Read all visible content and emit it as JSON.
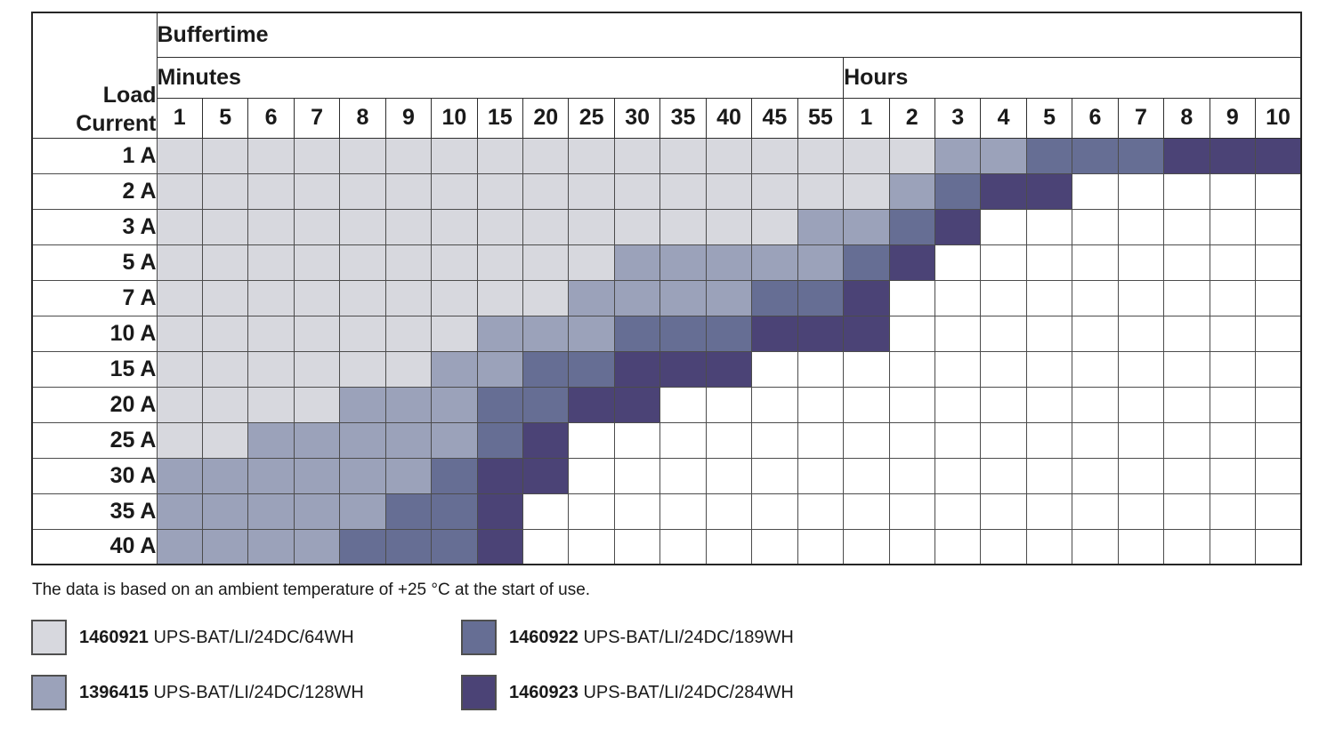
{
  "table": {
    "corner_label": [
      "Load",
      "Current"
    ],
    "buffertime_label": "Buffertime",
    "minutes_label": "Minutes",
    "hours_label": "Hours",
    "minute_ticks": [
      "1",
      "5",
      "6",
      "7",
      "8",
      "9",
      "10",
      "15",
      "20",
      "25",
      "30",
      "35",
      "40",
      "45",
      "55"
    ],
    "hour_ticks": [
      "1",
      "2",
      "3",
      "4",
      "5",
      "6",
      "7",
      "8",
      "9",
      "10"
    ]
  },
  "colors": {
    "0": "#ffffff",
    "1": "#d7d8de",
    "2": "#9ba2ba",
    "3": "#666e94",
    "4": "#4b4376"
  },
  "footer_note": "The data is based on an ambient temperature of +25 °C at the start of use.",
  "legend": [
    {
      "code": "1460921",
      "name": "UPS-BAT/LI/24DC/64WH",
      "color_key": "1"
    },
    {
      "code": "1396415",
      "name": "UPS-BAT/LI/24DC/128WH",
      "color_key": "2"
    },
    {
      "code": "1460922",
      "name": "UPS-BAT/LI/24DC/189WH",
      "color_key": "3"
    },
    {
      "code": "1460923",
      "name": "UPS-BAT/LI/24DC/284WH",
      "color_key": "4"
    }
  ],
  "chart_data": {
    "type": "heatmap",
    "title": "Buffertime",
    "ylabel": "Load Current",
    "x_axis": {
      "minutes": [
        1,
        5,
        6,
        7,
        8,
        9,
        10,
        15,
        20,
        25,
        30,
        35,
        40,
        45,
        55
      ],
      "hours": [
        1,
        2,
        3,
        4,
        5,
        6,
        7,
        8,
        9,
        10
      ]
    },
    "code_meaning": {
      "0": "no battery covers this buffertime",
      "1": "1460921 UPS-BAT/LI/24DC/64WH",
      "2": "1396415 UPS-BAT/LI/24DC/128WH",
      "3": "1460922 UPS-BAT/LI/24DC/189WH",
      "4": "1460923 UPS-BAT/LI/24DC/284WH"
    },
    "rows": [
      {
        "load_current": "1 A",
        "cells": [
          1,
          1,
          1,
          1,
          1,
          1,
          1,
          1,
          1,
          1,
          1,
          1,
          1,
          1,
          1,
          1,
          1,
          2,
          2,
          3,
          3,
          3,
          4,
          4,
          4
        ]
      },
      {
        "load_current": "2 A",
        "cells": [
          1,
          1,
          1,
          1,
          1,
          1,
          1,
          1,
          1,
          1,
          1,
          1,
          1,
          1,
          1,
          1,
          2,
          3,
          4,
          4,
          0,
          0,
          0,
          0,
          0
        ]
      },
      {
        "load_current": "3 A",
        "cells": [
          1,
          1,
          1,
          1,
          1,
          1,
          1,
          1,
          1,
          1,
          1,
          1,
          1,
          1,
          2,
          2,
          3,
          4,
          0,
          0,
          0,
          0,
          0,
          0,
          0
        ]
      },
      {
        "load_current": "5 A",
        "cells": [
          1,
          1,
          1,
          1,
          1,
          1,
          1,
          1,
          1,
          1,
          2,
          2,
          2,
          2,
          2,
          3,
          4,
          0,
          0,
          0,
          0,
          0,
          0,
          0,
          0
        ]
      },
      {
        "load_current": "7 A",
        "cells": [
          1,
          1,
          1,
          1,
          1,
          1,
          1,
          1,
          1,
          2,
          2,
          2,
          2,
          3,
          3,
          4,
          0,
          0,
          0,
          0,
          0,
          0,
          0,
          0,
          0
        ]
      },
      {
        "load_current": "10 A",
        "cells": [
          1,
          1,
          1,
          1,
          1,
          1,
          1,
          2,
          2,
          2,
          3,
          3,
          3,
          4,
          4,
          4,
          0,
          0,
          0,
          0,
          0,
          0,
          0,
          0,
          0
        ]
      },
      {
        "load_current": "15 A",
        "cells": [
          1,
          1,
          1,
          1,
          1,
          1,
          2,
          2,
          3,
          3,
          4,
          4,
          4,
          0,
          0,
          0,
          0,
          0,
          0,
          0,
          0,
          0,
          0,
          0,
          0
        ]
      },
      {
        "load_current": "20 A",
        "cells": [
          1,
          1,
          1,
          1,
          2,
          2,
          2,
          3,
          3,
          4,
          4,
          0,
          0,
          0,
          0,
          0,
          0,
          0,
          0,
          0,
          0,
          0,
          0,
          0,
          0
        ]
      },
      {
        "load_current": "25 A",
        "cells": [
          1,
          1,
          2,
          2,
          2,
          2,
          2,
          3,
          4,
          0,
          0,
          0,
          0,
          0,
          0,
          0,
          0,
          0,
          0,
          0,
          0,
          0,
          0,
          0,
          0
        ]
      },
      {
        "load_current": "30 A",
        "cells": [
          2,
          2,
          2,
          2,
          2,
          2,
          3,
          4,
          4,
          0,
          0,
          0,
          0,
          0,
          0,
          0,
          0,
          0,
          0,
          0,
          0,
          0,
          0,
          0,
          0
        ]
      },
      {
        "load_current": "35 A",
        "cells": [
          2,
          2,
          2,
          2,
          2,
          3,
          3,
          4,
          0,
          0,
          0,
          0,
          0,
          0,
          0,
          0,
          0,
          0,
          0,
          0,
          0,
          0,
          0,
          0,
          0
        ]
      },
      {
        "load_current": "40 A",
        "cells": [
          2,
          2,
          2,
          2,
          3,
          3,
          3,
          4,
          0,
          0,
          0,
          0,
          0,
          0,
          0,
          0,
          0,
          0,
          0,
          0,
          0,
          0,
          0,
          0,
          0
        ]
      }
    ]
  }
}
